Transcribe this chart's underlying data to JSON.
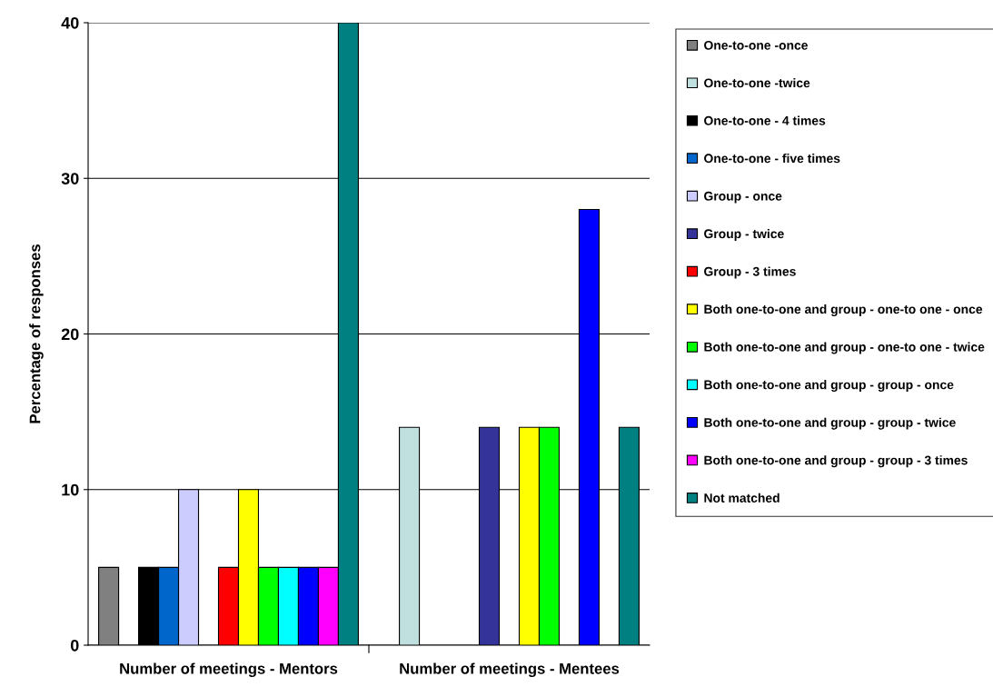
{
  "chart_data": {
    "type": "bar",
    "ylabel": "Percentage of responses",
    "categories": [
      "Number of meetings - Mentors",
      "Number of meetings - Mentees"
    ],
    "ylim": [
      0,
      40
    ],
    "yticks": [
      0,
      10,
      20,
      30,
      40
    ],
    "grid": "y",
    "legend": "right",
    "series": [
      {
        "name": "One-to-one -once",
        "color": "#808080",
        "values": [
          5,
          null
        ]
      },
      {
        "name": "One-to-one -twice",
        "color": "#c0e0e0",
        "values": [
          null,
          14
        ]
      },
      {
        "name": "One-to-one - 4 times",
        "color": "#000000",
        "values": [
          5,
          null
        ]
      },
      {
        "name": "One-to-one - five times",
        "color": "#0066cc",
        "values": [
          5,
          null
        ]
      },
      {
        "name": "Group - once",
        "color": "#ccccff",
        "values": [
          10,
          null
        ]
      },
      {
        "name": "Group - twice",
        "color": "#333399",
        "values": [
          null,
          14
        ]
      },
      {
        "name": "Group - 3 times",
        "color": "#ff0000",
        "values": [
          5,
          null
        ]
      },
      {
        "name": "Both one-to-one and group - one-to one - once",
        "color": "#ffff00",
        "values": [
          10,
          14
        ]
      },
      {
        "name": "Both one-to-one and group - one-to one - twice",
        "color": "#00ff00",
        "values": [
          5,
          14
        ]
      },
      {
        "name": "Both one-to-one and group - group - once",
        "color": "#00ffff",
        "values": [
          5,
          null
        ]
      },
      {
        "name": "Both one-to-one and group - group - twice",
        "color": "#0000ff",
        "values": [
          5,
          28
        ]
      },
      {
        "name": "Both one-to-one and group - group - 3 times",
        "color": "#ff00ff",
        "values": [
          5,
          null
        ]
      },
      {
        "name": "Not matched",
        "color": "#008080",
        "values": [
          40,
          14
        ]
      }
    ]
  }
}
